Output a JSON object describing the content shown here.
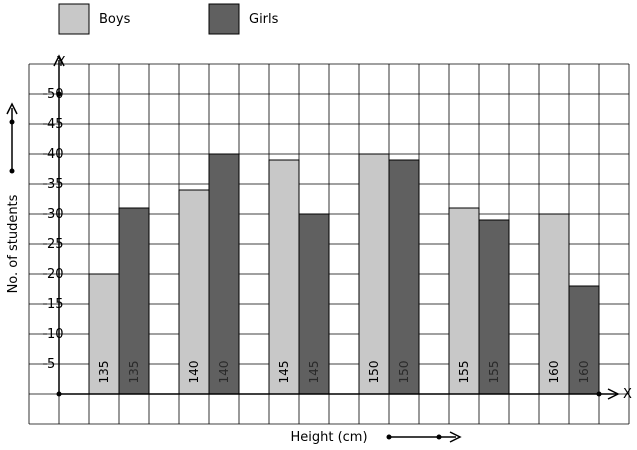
{
  "chart_data": {
    "type": "bar",
    "title": "",
    "xlabel": "Height (cm)",
    "ylabel": "No. of students",
    "x_axis_letter": "X",
    "y_axis_letter": "Y",
    "categories": [
      "135",
      "140",
      "145",
      "150",
      "155",
      "160"
    ],
    "series": [
      {
        "name": "Boys",
        "color": "#c8c8c8",
        "values": [
          20,
          34,
          39,
          40,
          31,
          30
        ]
      },
      {
        "name": "Girls",
        "color": "#606060",
        "values": [
          31,
          40,
          30,
          39,
          29,
          18
        ]
      }
    ],
    "y_ticks": [
      5,
      10,
      15,
      20,
      25,
      30,
      35,
      40,
      45,
      50
    ],
    "ylim": [
      0,
      55
    ],
    "grid": true,
    "legend_position": "top-left"
  }
}
